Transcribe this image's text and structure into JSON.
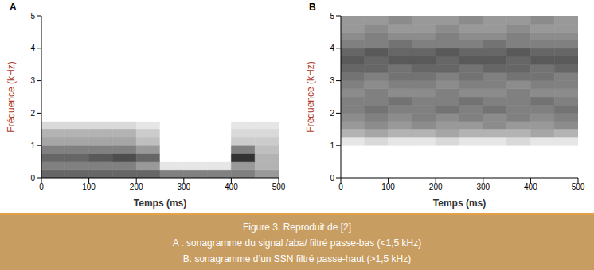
{
  "caption": {
    "title": "Figure 3. Reproduit de [2]",
    "lines": [
      "A : sonagramme du signal /aba/ filtré passe-bas (<1,5 kHz)",
      "B: sonagramme d’un SSN filtré passe-haut (>1,5 kHz)"
    ]
  },
  "chart_data": [
    {
      "type": "heatmap",
      "title": "A",
      "x_label": "Temps (ms)",
      "y_label": "Fréquence (kHz)",
      "xlim": [
        0,
        500
      ],
      "xticks": [
        0,
        100,
        200,
        300,
        400,
        500
      ],
      "ylim": [
        0,
        5
      ],
      "yticks": [
        0,
        1,
        2,
        3,
        4,
        5
      ],
      "x_edges": [
        0,
        50,
        100,
        150,
        200,
        250,
        300,
        350,
        400,
        450,
        500
      ],
      "y_edges": [
        0,
        0.25,
        0.5,
        0.75,
        1,
        1.25,
        1.5,
        1.75,
        2,
        2.25,
        2.5,
        2.75,
        3,
        3.25,
        3.5,
        3.75,
        4,
        4.25,
        4.5,
        4.75,
        5
      ],
      "cells": [
        [
          0.6,
          0.6,
          0.6,
          0.6,
          0.6,
          0.5,
          0.5,
          0.5,
          0.5,
          0.4
        ],
        [
          0.5,
          0.5,
          0.5,
          0.5,
          0.4,
          0.1,
          0.1,
          0.1,
          0.4,
          0.3
        ],
        [
          0.6,
          0.6,
          0.65,
          0.7,
          0.6,
          0,
          0,
          0,
          0.8,
          0.3
        ],
        [
          0.5,
          0.5,
          0.5,
          0.5,
          0.4,
          0,
          0,
          0,
          0.5,
          0.25
        ],
        [
          0.35,
          0.35,
          0.35,
          0.35,
          0.25,
          0,
          0,
          0,
          0.2,
          0.2
        ],
        [
          0.3,
          0.3,
          0.3,
          0.3,
          0.2,
          0,
          0,
          0,
          0.15,
          0.15
        ],
        [
          0.15,
          0.15,
          0.15,
          0.15,
          0.1,
          0,
          0,
          0,
          0.1,
          0.1
        ],
        [
          0,
          0,
          0,
          0,
          0,
          0,
          0,
          0,
          0,
          0
        ],
        [
          0,
          0,
          0,
          0,
          0,
          0,
          0,
          0,
          0,
          0
        ],
        [
          0,
          0,
          0,
          0,
          0,
          0,
          0,
          0,
          0,
          0
        ],
        [
          0,
          0,
          0,
          0,
          0,
          0,
          0,
          0,
          0,
          0
        ],
        [
          0,
          0,
          0,
          0,
          0,
          0,
          0,
          0,
          0,
          0
        ],
        [
          0,
          0,
          0,
          0,
          0,
          0,
          0,
          0,
          0,
          0
        ],
        [
          0,
          0,
          0,
          0,
          0,
          0,
          0,
          0,
          0,
          0
        ],
        [
          0,
          0,
          0,
          0,
          0,
          0,
          0,
          0,
          0,
          0
        ],
        [
          0,
          0,
          0,
          0,
          0,
          0,
          0,
          0,
          0,
          0
        ],
        [
          0,
          0,
          0,
          0,
          0,
          0,
          0,
          0,
          0,
          0
        ],
        [
          0,
          0,
          0,
          0,
          0,
          0,
          0,
          0,
          0,
          0
        ],
        [
          0,
          0,
          0,
          0,
          0,
          0,
          0,
          0,
          0,
          0
        ],
        [
          0,
          0,
          0,
          0,
          0,
          0,
          0,
          0,
          0,
          0
        ]
      ]
    },
    {
      "type": "heatmap",
      "title": "B",
      "x_label": "Temps (ms)",
      "y_label": "Fréquence (kHz)",
      "xlim": [
        0,
        500
      ],
      "xticks": [
        0,
        100,
        200,
        300,
        400,
        500
      ],
      "ylim": [
        0,
        5
      ],
      "yticks": [
        0,
        1,
        2,
        3,
        4,
        5
      ],
      "x_edges": [
        0,
        50,
        100,
        150,
        200,
        250,
        300,
        350,
        400,
        450,
        500
      ],
      "y_edges": [
        0,
        0.25,
        0.5,
        0.75,
        1,
        1.25,
        1.5,
        1.75,
        2,
        2.25,
        2.5,
        2.75,
        3,
        3.25,
        3.5,
        3.75,
        4,
        4.25,
        4.5,
        4.75,
        5
      ],
      "cells": [
        [
          0,
          0,
          0,
          0,
          0,
          0,
          0,
          0,
          0,
          0
        ],
        [
          0,
          0,
          0,
          0,
          0,
          0,
          0,
          0,
          0,
          0
        ],
        [
          0,
          0,
          0,
          0,
          0,
          0,
          0,
          0,
          0,
          0
        ],
        [
          0,
          0,
          0,
          0,
          0,
          0,
          0,
          0,
          0,
          0
        ],
        [
          0.1,
          0.15,
          0.1,
          0.1,
          0.15,
          0.1,
          0.1,
          0.15,
          0.1,
          0.1
        ],
        [
          0.3,
          0.35,
          0.3,
          0.3,
          0.35,
          0.3,
          0.3,
          0.3,
          0.35,
          0.3
        ],
        [
          0.4,
          0.45,
          0.4,
          0.45,
          0.4,
          0.4,
          0.45,
          0.4,
          0.4,
          0.45
        ],
        [
          0.45,
          0.5,
          0.45,
          0.5,
          0.45,
          0.5,
          0.45,
          0.5,
          0.45,
          0.5
        ],
        [
          0.5,
          0.55,
          0.5,
          0.5,
          0.55,
          0.5,
          0.55,
          0.5,
          0.5,
          0.55
        ],
        [
          0.5,
          0.5,
          0.55,
          0.5,
          0.5,
          0.55,
          0.5,
          0.5,
          0.55,
          0.5
        ],
        [
          0.45,
          0.5,
          0.45,
          0.45,
          0.5,
          0.45,
          0.45,
          0.5,
          0.45,
          0.45
        ],
        [
          0.5,
          0.45,
          0.5,
          0.5,
          0.45,
          0.5,
          0.5,
          0.45,
          0.5,
          0.5
        ],
        [
          0.55,
          0.5,
          0.55,
          0.55,
          0.5,
          0.55,
          0.5,
          0.55,
          0.55,
          0.5
        ],
        [
          0.6,
          0.6,
          0.55,
          0.6,
          0.6,
          0.55,
          0.6,
          0.6,
          0.55,
          0.6
        ],
        [
          0.65,
          0.6,
          0.65,
          0.65,
          0.6,
          0.65,
          0.65,
          0.6,
          0.65,
          0.65
        ],
        [
          0.6,
          0.65,
          0.6,
          0.6,
          0.65,
          0.6,
          0.6,
          0.65,
          0.6,
          0.6
        ],
        [
          0.5,
          0.5,
          0.55,
          0.5,
          0.5,
          0.5,
          0.55,
          0.5,
          0.5,
          0.5
        ],
        [
          0.45,
          0.5,
          0.45,
          0.45,
          0.5,
          0.45,
          0.45,
          0.5,
          0.45,
          0.45
        ],
        [
          0.4,
          0.45,
          0.4,
          0.4,
          0.45,
          0.4,
          0.4,
          0.45,
          0.4,
          0.4
        ],
        [
          0.4,
          0.4,
          0.45,
          0.4,
          0.4,
          0.45,
          0.4,
          0.4,
          0.45,
          0.4
        ]
      ]
    }
  ]
}
